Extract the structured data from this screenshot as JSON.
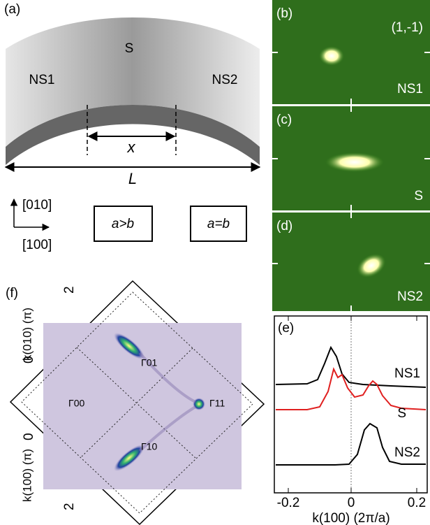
{
  "panel_a": {
    "label": "(a)",
    "regions": [
      "NS1",
      "S",
      "NS2"
    ],
    "x_label": "x",
    "L_label": "L",
    "axes": [
      "[010]",
      "[100]"
    ],
    "boxes": [
      "a>b",
      "a=b"
    ]
  },
  "panel_b": {
    "label": "(b)",
    "index": "(1,-1)",
    "name": "NS1"
  },
  "panel_c": {
    "label": "(c)",
    "name": "S"
  },
  "panel_d": {
    "label": "(d)",
    "name": "NS2"
  },
  "panel_e": {
    "label": "(e)",
    "curves": [
      "NS1",
      "S",
      "NS2"
    ],
    "xticks": [
      "-0.2",
      "0",
      "0.2"
    ],
    "x_label": "k(100) (2π/a)"
  },
  "panel_f": {
    "label": "(f)",
    "axis_top": "k(010) (π)",
    "axis_bottom": "k(100) (π)",
    "top_ticks": [
      "2",
      "0"
    ],
    "bottom_ticks": [
      "0",
      "2"
    ],
    "points": [
      "Γ01",
      "Γ00",
      "Γ11",
      "Γ10"
    ]
  }
}
